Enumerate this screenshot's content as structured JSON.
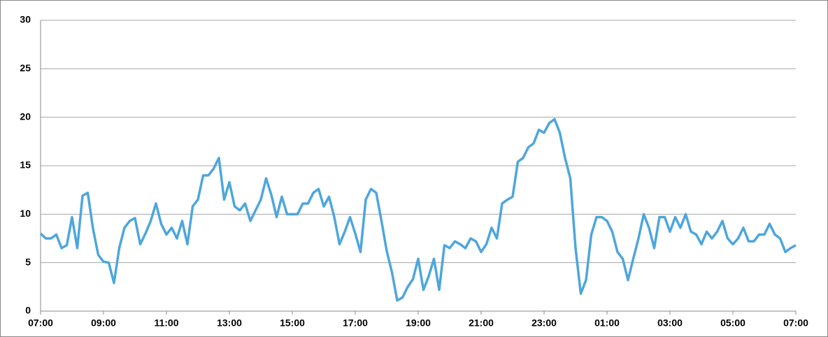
{
  "chart_data": {
    "type": "line",
    "categories": [
      "07:00",
      null,
      null,
      null,
      null,
      null,
      null,
      null,
      null,
      null,
      null,
      null,
      "09:00",
      null,
      null,
      null,
      null,
      null,
      null,
      null,
      null,
      null,
      null,
      null,
      "11:00",
      null,
      null,
      null,
      null,
      null,
      null,
      null,
      null,
      null,
      null,
      null,
      "13:00",
      null,
      null,
      null,
      null,
      null,
      null,
      null,
      null,
      null,
      null,
      null,
      "15:00",
      null,
      null,
      null,
      null,
      null,
      null,
      null,
      null,
      null,
      null,
      null,
      "17:00",
      null,
      null,
      null,
      null,
      null,
      null,
      null,
      null,
      null,
      null,
      null,
      "19:00",
      null,
      null,
      null,
      null,
      null,
      null,
      null,
      null,
      null,
      null,
      null,
      "21:00",
      null,
      null,
      null,
      null,
      null,
      null,
      null,
      null,
      null,
      null,
      null,
      "23:00",
      null,
      null,
      null,
      null,
      null,
      null,
      null,
      null,
      null,
      null,
      null,
      "01:00",
      null,
      null,
      null,
      null,
      null,
      null,
      null,
      null,
      null,
      null,
      null,
      "03:00",
      null,
      null,
      null,
      null,
      null,
      null,
      null,
      null,
      null,
      null,
      null,
      "05:00",
      null,
      null,
      null,
      null,
      null,
      null,
      null,
      null,
      null,
      null,
      null,
      "07:00"
    ],
    "series": [
      {
        "color": "#4ea6dc",
        "values": [
          8.0,
          7.5,
          7.5,
          7.9,
          6.5,
          6.8,
          9.7,
          6.5,
          11.9,
          12.2,
          8.5,
          5.8,
          5.1,
          5.0,
          2.9,
          6.5,
          8.6,
          9.3,
          9.6,
          6.9,
          8.0,
          9.3,
          11.1,
          9.0,
          7.9,
          8.6,
          7.5,
          9.3,
          6.9,
          10.8,
          11.5,
          14.0,
          14.0,
          14.7,
          15.8,
          11.5,
          13.3,
          10.8,
          10.4,
          11.1,
          9.3,
          10.4,
          11.5,
          13.7,
          12.0,
          9.7,
          11.8,
          10.0,
          10.0,
          10.0,
          11.1,
          11.1,
          12.2,
          12.6,
          10.8,
          11.8,
          9.7,
          6.9,
          8.2,
          9.7,
          8.0,
          6.1,
          11.5,
          12.6,
          12.2,
          9.3,
          6.2,
          4.0,
          1.1,
          1.4,
          2.5,
          3.3,
          5.4,
          2.2,
          3.6,
          5.4,
          2.2,
          6.8,
          6.5,
          7.2,
          6.9,
          6.5,
          7.5,
          7.2,
          6.1,
          6.9,
          8.6,
          7.5,
          11.1,
          11.5,
          11.8,
          15.4,
          15.8,
          16.9,
          17.3,
          18.7,
          18.4,
          19.4,
          19.8,
          18.4,
          15.8,
          13.7,
          6.5,
          1.8,
          3.2,
          7.9,
          9.7,
          9.7,
          9.3,
          8.2,
          6.1,
          5.4,
          3.2,
          5.4,
          7.5,
          10.0,
          8.6,
          6.5,
          9.7,
          9.7,
          8.2,
          9.7,
          8.6,
          10.0,
          8.2,
          7.9,
          6.9,
          8.2,
          7.5,
          8.2,
          9.3,
          7.5,
          6.9,
          7.5,
          8.6,
          7.2,
          7.2,
          7.9,
          7.9,
          9.0,
          7.9,
          7.5,
          6.1,
          6.5,
          6.8
        ]
      }
    ],
    "ylim": [
      0,
      30
    ],
    "yticks": [
      0,
      5,
      10,
      15,
      20,
      25,
      30
    ],
    "grid": true
  }
}
